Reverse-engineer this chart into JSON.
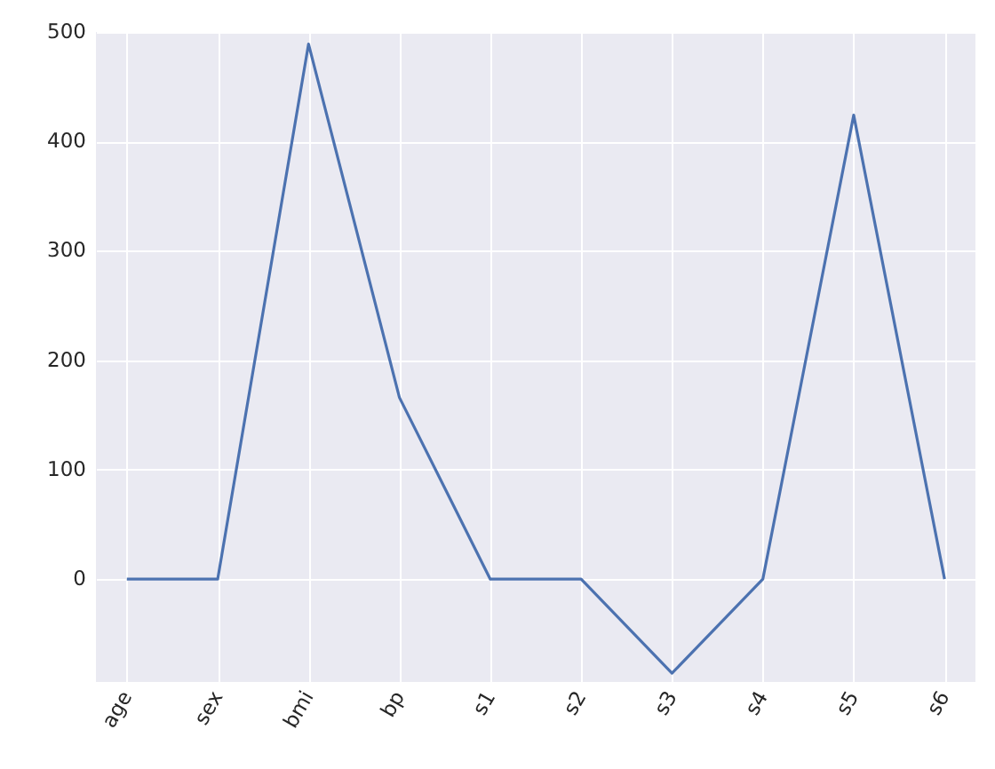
{
  "chart_data": {
    "type": "line",
    "categories": [
      "age",
      "sex",
      "bmi",
      "bp",
      "s1",
      "s2",
      "s3",
      "s4",
      "s5",
      "s6"
    ],
    "series": [
      {
        "color": "#4c72b0",
        "values": [
          0,
          0,
          489,
          166,
          0,
          0,
          -86,
          0,
          424,
          0
        ]
      }
    ],
    "ylim": [
      -94,
      500
    ],
    "yticks": [
      0,
      100,
      200,
      300,
      400,
      500
    ],
    "grid": true,
    "marker": "none",
    "line_style": "solid"
  }
}
